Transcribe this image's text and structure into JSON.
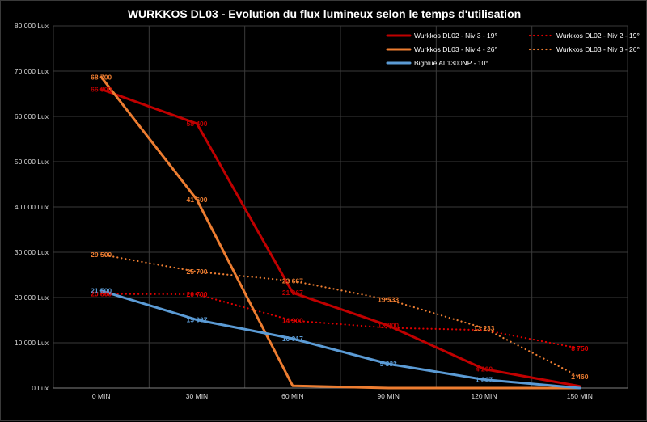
{
  "chart_data": {
    "type": "line",
    "title": "WURKKOS DL03 - Evolution du flux lumineux selon le temps d'utilisation",
    "categories": [
      "0 MIN",
      "30 MIN",
      "60 MIN",
      "90 MIN",
      "120 MIN",
      "150 MIN"
    ],
    "ylim": [
      0,
      80000
    ],
    "ytick_values": [
      0,
      10000,
      20000,
      30000,
      40000,
      50000,
      60000,
      70000,
      80000
    ],
    "ytick_labels": [
      "0 Lux",
      "10 000 Lux",
      "20 000 Lux",
      "30 000 Lux",
      "40 000 Lux",
      "50 000 Lux",
      "60 000 Lux",
      "70 000 Lux",
      "80 000 Lux"
    ],
    "grid": true,
    "background": "#000000",
    "legend_position": "top-right",
    "series": [
      {
        "name": "Wurkkos DL02 - Niv 3  - 19°",
        "color": "#c00000",
        "style": "solid",
        "values": [
          66000,
          58400,
          21067,
          13800,
          4200,
          400
        ],
        "labels": [
          "66 000",
          "58 400",
          "21 067",
          "13 800",
          "4 200",
          ""
        ]
      },
      {
        "name": "Wurkkos DL02 - Niv 2  - 19°",
        "color": "#e00000",
        "style": "dotted",
        "values": [
          20800,
          20700,
          14900,
          13300,
          12800,
          8750
        ],
        "labels": [
          "20 800",
          "20 700",
          "14 900",
          "",
          "",
          "8 750"
        ]
      },
      {
        "name": "Wurkkos DL03 - Niv 4  - 26°",
        "color": "#ed7d31",
        "style": "solid",
        "values": [
          68700,
          41600,
          500,
          0,
          0,
          0
        ],
        "labels": [
          "68 700",
          "41 600",
          "",
          "",
          "",
          ""
        ]
      },
      {
        "name": "Wurkkos DL03 - Niv 3  - 26°",
        "color": "#ed7d31",
        "style": "dotted",
        "values": [
          29500,
          25700,
          23667,
          19533,
          13233,
          2460
        ],
        "labels": [
          "29 500",
          "25 700",
          "23 667",
          "19 533",
          "13 233",
          "2 460"
        ]
      },
      {
        "name": "Bigblue AL1300NP  - 10°",
        "color": "#5b9bd5",
        "style": "solid",
        "values": [
          21500,
          15067,
          10917,
          5333,
          1867,
          0
        ],
        "labels": [
          "21 500",
          "15 067",
          "10 917",
          "5 333",
          "1 867",
          ""
        ]
      }
    ]
  }
}
